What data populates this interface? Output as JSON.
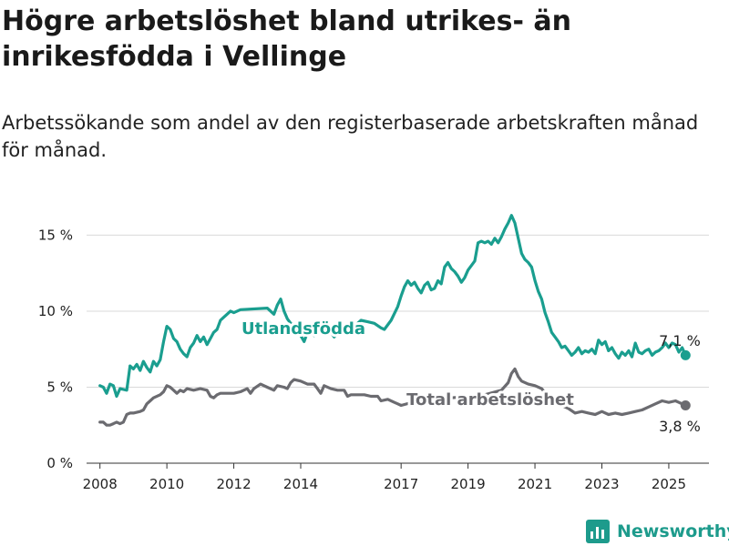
{
  "title": "Högre arbetslöshet bland utrikes- än inrikesfödda i Vellinge",
  "subtitle": "Arbetssökande som andel av den registerbaserade arbetskraften månad för månad.",
  "brand": {
    "name": "Newsworthy",
    "color": "#1d9b8c"
  },
  "chart_data": {
    "type": "line",
    "ylim": [
      0,
      17
    ],
    "xlim": [
      2007.6,
      2026.2
    ],
    "y_ticks": [
      {
        "value": 0,
        "label": "0 %"
      },
      {
        "value": 5,
        "label": "5 %"
      },
      {
        "value": 10,
        "label": "10 %"
      },
      {
        "value": 15,
        "label": "15 %"
      }
    ],
    "x_ticks": [
      {
        "value": 2008,
        "label": "2008"
      },
      {
        "value": 2010,
        "label": "2010"
      },
      {
        "value": 2012,
        "label": "2012"
      },
      {
        "value": 2014,
        "label": "2014"
      },
      {
        "value": 2017,
        "label": "2017"
      },
      {
        "value": 2019,
        "label": "2019"
      },
      {
        "value": 2021,
        "label": "2021"
      },
      {
        "value": 2023,
        "label": "2023"
      },
      {
        "value": 2025,
        "label": "2025"
      }
    ],
    "grid": true,
    "series": [
      {
        "name": "Utlandsfödda",
        "color": "#1a9e8f",
        "end_label": "7,1 %",
        "points": [
          [
            2008.0,
            5.1
          ],
          [
            2008.1,
            5.0
          ],
          [
            2008.2,
            4.6
          ],
          [
            2008.3,
            5.2
          ],
          [
            2008.4,
            5.1
          ],
          [
            2008.5,
            4.4
          ],
          [
            2008.6,
            4.9
          ],
          [
            2008.8,
            4.8
          ],
          [
            2008.9,
            6.4
          ],
          [
            2009.0,
            6.2
          ],
          [
            2009.1,
            6.5
          ],
          [
            2009.2,
            6.1
          ],
          [
            2009.3,
            6.7
          ],
          [
            2009.4,
            6.3
          ],
          [
            2009.5,
            6.0
          ],
          [
            2009.6,
            6.7
          ],
          [
            2009.7,
            6.4
          ],
          [
            2009.8,
            6.8
          ],
          [
            2009.9,
            8.0
          ],
          [
            2010.0,
            9.0
          ],
          [
            2010.1,
            8.8
          ],
          [
            2010.2,
            8.2
          ],
          [
            2010.3,
            8.0
          ],
          [
            2010.4,
            7.5
          ],
          [
            2010.5,
            7.2
          ],
          [
            2010.6,
            7.0
          ],
          [
            2010.7,
            7.6
          ],
          [
            2010.8,
            7.9
          ],
          [
            2010.9,
            8.4
          ],
          [
            2011.0,
            8.0
          ],
          [
            2011.1,
            8.3
          ],
          [
            2011.2,
            7.8
          ],
          [
            2011.3,
            8.2
          ],
          [
            2011.4,
            8.6
          ],
          [
            2011.5,
            8.8
          ],
          [
            2011.6,
            9.4
          ],
          [
            2011.7,
            9.6
          ],
          [
            2011.8,
            9.8
          ],
          [
            2011.9,
            10.0
          ],
          [
            2012.0,
            9.9
          ],
          [
            2012.2,
            10.1
          ],
          [
            2013.0,
            10.2
          ],
          [
            2013.2,
            9.8
          ],
          [
            2013.3,
            10.4
          ],
          [
            2013.4,
            10.8
          ],
          [
            2013.5,
            10.0
          ],
          [
            2013.6,
            9.5
          ],
          [
            2013.7,
            9.2
          ],
          [
            2013.8,
            9.0
          ],
          [
            2013.9,
            8.7
          ],
          [
            2014.0,
            8.4
          ],
          [
            2014.1,
            8.0
          ],
          [
            2014.2,
            8.6
          ],
          [
            2014.3,
            9.0
          ],
          [
            2014.4,
            8.4
          ],
          [
            2014.6,
            8.6
          ],
          [
            2014.8,
            8.9
          ],
          [
            2015.0,
            8.3
          ],
          [
            2015.2,
            8.8
          ],
          [
            2015.4,
            9.1
          ],
          [
            2015.6,
            9.0
          ],
          [
            2015.8,
            9.4
          ],
          [
            2016.0,
            9.3
          ],
          [
            2016.2,
            9.2
          ],
          [
            2016.4,
            8.9
          ],
          [
            2016.5,
            8.8
          ],
          [
            2016.7,
            9.4
          ],
          [
            2016.9,
            10.3
          ],
          [
            2017.0,
            11.0
          ],
          [
            2017.1,
            11.6
          ],
          [
            2017.2,
            12.0
          ],
          [
            2017.3,
            11.7
          ],
          [
            2017.4,
            11.9
          ],
          [
            2017.5,
            11.5
          ],
          [
            2017.6,
            11.2
          ],
          [
            2017.7,
            11.7
          ],
          [
            2017.8,
            11.9
          ],
          [
            2017.9,
            11.4
          ],
          [
            2018.0,
            11.5
          ],
          [
            2018.1,
            12.0
          ],
          [
            2018.2,
            11.8
          ],
          [
            2018.3,
            12.9
          ],
          [
            2018.4,
            13.2
          ],
          [
            2018.5,
            12.8
          ],
          [
            2018.6,
            12.6
          ],
          [
            2018.7,
            12.3
          ],
          [
            2018.8,
            11.9
          ],
          [
            2018.9,
            12.2
          ],
          [
            2019.0,
            12.7
          ],
          [
            2019.1,
            13.0
          ],
          [
            2019.2,
            13.3
          ],
          [
            2019.3,
            14.5
          ],
          [
            2019.4,
            14.6
          ],
          [
            2019.5,
            14.5
          ],
          [
            2019.6,
            14.6
          ],
          [
            2019.7,
            14.4
          ],
          [
            2019.8,
            14.8
          ],
          [
            2019.9,
            14.5
          ],
          [
            2020.0,
            14.9
          ],
          [
            2020.1,
            15.4
          ],
          [
            2020.2,
            15.8
          ],
          [
            2020.3,
            16.3
          ],
          [
            2020.4,
            15.8
          ],
          [
            2020.5,
            14.8
          ],
          [
            2020.6,
            13.8
          ],
          [
            2020.7,
            13.4
          ],
          [
            2020.8,
            13.2
          ],
          [
            2020.9,
            12.9
          ],
          [
            2021.0,
            12.0
          ],
          [
            2021.1,
            11.3
          ],
          [
            2021.2,
            10.8
          ],
          [
            2021.3,
            9.9
          ],
          [
            2021.4,
            9.3
          ],
          [
            2021.5,
            8.6
          ],
          [
            2021.6,
            8.3
          ],
          [
            2021.7,
            8.0
          ],
          [
            2021.8,
            7.6
          ],
          [
            2021.9,
            7.7
          ],
          [
            2022.0,
            7.4
          ],
          [
            2022.1,
            7.1
          ],
          [
            2022.2,
            7.3
          ],
          [
            2022.3,
            7.6
          ],
          [
            2022.4,
            7.2
          ],
          [
            2022.5,
            7.4
          ],
          [
            2022.6,
            7.3
          ],
          [
            2022.7,
            7.5
          ],
          [
            2022.8,
            7.2
          ],
          [
            2022.9,
            8.1
          ],
          [
            2023.0,
            7.8
          ],
          [
            2023.1,
            8.0
          ],
          [
            2023.2,
            7.4
          ],
          [
            2023.3,
            7.6
          ],
          [
            2023.4,
            7.2
          ],
          [
            2023.5,
            6.9
          ],
          [
            2023.6,
            7.3
          ],
          [
            2023.7,
            7.1
          ],
          [
            2023.8,
            7.4
          ],
          [
            2023.9,
            7.0
          ],
          [
            2024.0,
            7.9
          ],
          [
            2024.1,
            7.3
          ],
          [
            2024.2,
            7.2
          ],
          [
            2024.3,
            7.4
          ],
          [
            2024.4,
            7.5
          ],
          [
            2024.5,
            7.1
          ],
          [
            2024.6,
            7.3
          ],
          [
            2024.7,
            7.4
          ],
          [
            2024.8,
            7.6
          ],
          [
            2024.9,
            7.9
          ],
          [
            2025.0,
            7.6
          ],
          [
            2025.1,
            7.9
          ],
          [
            2025.2,
            7.8
          ],
          [
            2025.3,
            7.3
          ],
          [
            2025.4,
            7.6
          ],
          [
            2025.5,
            7.1
          ]
        ]
      },
      {
        "name": "Total arbetslöshet",
        "color": "#6b6b70",
        "end_label": "3,8 %",
        "points": [
          [
            2008.0,
            2.7
          ],
          [
            2008.1,
            2.7
          ],
          [
            2008.2,
            2.5
          ],
          [
            2008.3,
            2.5
          ],
          [
            2008.4,
            2.6
          ],
          [
            2008.5,
            2.7
          ],
          [
            2008.6,
            2.6
          ],
          [
            2008.7,
            2.7
          ],
          [
            2008.8,
            3.2
          ],
          [
            2008.9,
            3.3
          ],
          [
            2009.0,
            3.3
          ],
          [
            2009.2,
            3.4
          ],
          [
            2009.3,
            3.5
          ],
          [
            2009.4,
            3.9
          ],
          [
            2009.5,
            4.1
          ],
          [
            2009.6,
            4.3
          ],
          [
            2009.8,
            4.5
          ],
          [
            2009.9,
            4.7
          ],
          [
            2010.0,
            5.1
          ],
          [
            2010.1,
            5.0
          ],
          [
            2010.2,
            4.8
          ],
          [
            2010.3,
            4.6
          ],
          [
            2010.4,
            4.8
          ],
          [
            2010.5,
            4.7
          ],
          [
            2010.6,
            4.9
          ],
          [
            2010.8,
            4.8
          ],
          [
            2011.0,
            4.9
          ],
          [
            2011.2,
            4.8
          ],
          [
            2011.3,
            4.4
          ],
          [
            2011.4,
            4.3
          ],
          [
            2011.5,
            4.5
          ],
          [
            2011.6,
            4.6
          ],
          [
            2011.8,
            4.6
          ],
          [
            2012.0,
            4.6
          ],
          [
            2012.2,
            4.7
          ],
          [
            2012.4,
            4.9
          ],
          [
            2012.5,
            4.6
          ],
          [
            2012.6,
            4.9
          ],
          [
            2012.8,
            5.2
          ],
          [
            2013.0,
            5.0
          ],
          [
            2013.2,
            4.8
          ],
          [
            2013.3,
            5.1
          ],
          [
            2013.5,
            5.0
          ],
          [
            2013.6,
            4.9
          ],
          [
            2013.7,
            5.3
          ],
          [
            2013.8,
            5.5
          ],
          [
            2014.0,
            5.4
          ],
          [
            2014.2,
            5.2
          ],
          [
            2014.4,
            5.2
          ],
          [
            2014.5,
            4.9
          ],
          [
            2014.6,
            4.6
          ],
          [
            2014.7,
            5.1
          ],
          [
            2014.9,
            4.9
          ],
          [
            2015.1,
            4.8
          ],
          [
            2015.3,
            4.8
          ],
          [
            2015.4,
            4.4
          ],
          [
            2015.5,
            4.5
          ],
          [
            2015.7,
            4.5
          ],
          [
            2015.9,
            4.5
          ],
          [
            2016.1,
            4.4
          ],
          [
            2016.3,
            4.4
          ],
          [
            2016.4,
            4.1
          ],
          [
            2016.6,
            4.2
          ],
          [
            2016.8,
            4.0
          ],
          [
            2016.9,
            3.9
          ],
          [
            2017.0,
            3.8
          ],
          [
            2017.5,
            4.1
          ],
          [
            2018.0,
            4.2
          ],
          [
            2018.5,
            4.3
          ],
          [
            2019.0,
            4.4
          ],
          [
            2019.5,
            4.5
          ],
          [
            2020.0,
            4.8
          ],
          [
            2020.2,
            5.3
          ],
          [
            2020.3,
            5.9
          ],
          [
            2020.4,
            6.2
          ],
          [
            2020.5,
            5.7
          ],
          [
            2020.6,
            5.4
          ],
          [
            2020.8,
            5.2
          ],
          [
            2021.0,
            5.1
          ],
          [
            2021.2,
            4.9
          ],
          [
            2021.4,
            4.4
          ],
          [
            2021.6,
            4.0
          ],
          [
            2021.8,
            3.8
          ],
          [
            2022.0,
            3.6
          ],
          [
            2022.2,
            3.3
          ],
          [
            2022.4,
            3.4
          ],
          [
            2022.6,
            3.3
          ],
          [
            2022.8,
            3.2
          ],
          [
            2023.0,
            3.4
          ],
          [
            2023.2,
            3.2
          ],
          [
            2023.4,
            3.3
          ],
          [
            2023.6,
            3.2
          ],
          [
            2023.8,
            3.3
          ],
          [
            2024.0,
            3.4
          ],
          [
            2024.2,
            3.5
          ],
          [
            2024.4,
            3.7
          ],
          [
            2024.6,
            3.9
          ],
          [
            2024.8,
            4.1
          ],
          [
            2025.0,
            4.0
          ],
          [
            2025.2,
            4.1
          ],
          [
            2025.3,
            4.0
          ],
          [
            2025.5,
            3.8
          ]
        ]
      }
    ]
  }
}
